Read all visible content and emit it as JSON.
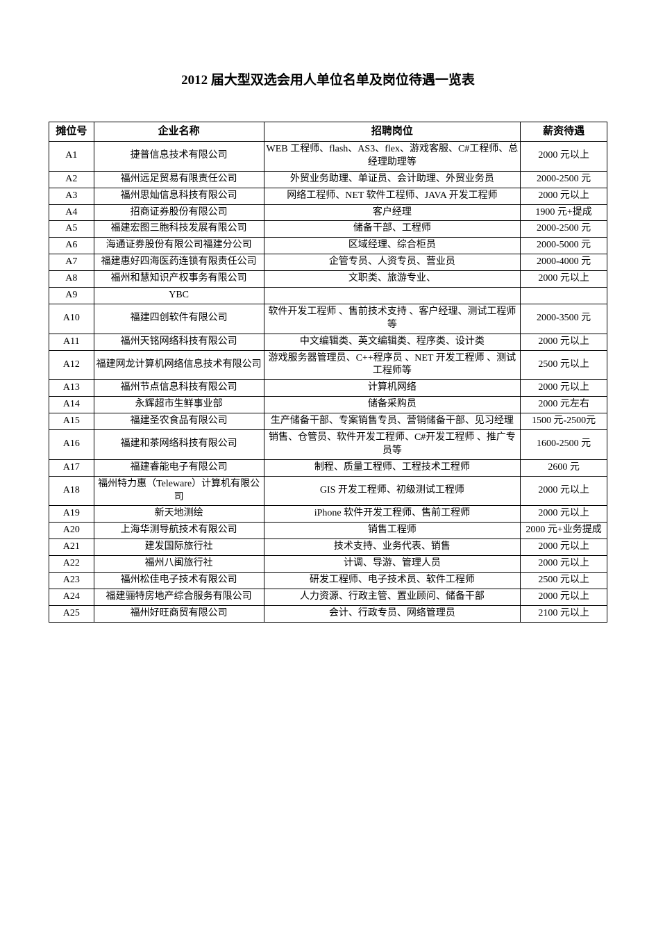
{
  "title": "2012 届大型双选会用人单位名单及岗位待遇一览表",
  "table": {
    "columns": [
      "摊位号",
      "企业名称",
      "招聘岗位",
      "薪资待遇"
    ],
    "column_widths_pct": [
      8,
      27,
      50,
      15
    ],
    "header_fontsize": 15,
    "cell_fontsize": 14,
    "border_color": "#000000",
    "text_color": "#000000",
    "background_color": "#ffffff",
    "rows": [
      {
        "booth": "A1",
        "company": "捷普信息技术有限公司",
        "position": "WEB 工程师、flash、AS3、flex、游戏客服、C#工程师、总经理助理等",
        "salary": "2000 元以上"
      },
      {
        "booth": "A2",
        "company": "福州远足贸易有限责任公司",
        "position": "外贸业务助理、单证员、会计助理、外贸业务员",
        "salary": "2000-2500 元"
      },
      {
        "booth": "A3",
        "company": "福州思灿信息科技有限公司",
        "position": "网络工程师、NET 软件工程师、JAVA 开发工程师",
        "salary": "2000 元以上"
      },
      {
        "booth": "A4",
        "company": "招商证券股份有限公司",
        "position": "客户经理",
        "salary": "1900 元+提成"
      },
      {
        "booth": "A5",
        "company": "福建宏图三胞科技发展有限公司",
        "position": "储备干部、工程师",
        "salary": "2000-2500 元"
      },
      {
        "booth": "A6",
        "company": "海通证券股份有限公司福建分公司",
        "position": "区域经理、综合柜员",
        "salary": "2000-5000 元"
      },
      {
        "booth": "A7",
        "company": "福建惠好四海医药连锁有限责任公司",
        "position": "企管专员、人资专员、营业员",
        "salary": "2000-4000 元"
      },
      {
        "booth": "A8",
        "company": "福州和慧知识产权事务有限公司",
        "position": "文职类、旅游专业、",
        "salary": "2000 元以上"
      },
      {
        "booth": "A9",
        "company": "YBC",
        "position": "",
        "salary": ""
      },
      {
        "booth": "A10",
        "company": "福建四创软件有限公司",
        "position": "软件开发工程师 、售前技术支持 、客户经理、测试工程师等",
        "salary": "2000-3500 元"
      },
      {
        "booth": "A11",
        "company": "福州天铭网络科技有限公司",
        "position": "中文编辑类、英文编辑类、程序类、设计类",
        "salary": "2000 元以上"
      },
      {
        "booth": "A12",
        "company": "福建网龙计算机网络信息技术有限公司",
        "position": "游戏服务器管理员、C++程序员 、NET 开发工程师 、测试工程师等",
        "salary": "2500 元以上"
      },
      {
        "booth": "A13",
        "company": "福州节点信息科技有限公司",
        "position": "计算机网络",
        "salary": "2000 元以上"
      },
      {
        "booth": "A14",
        "company": "永辉超市生鲜事业部",
        "position": "储备采购员",
        "salary": "2000 元左右"
      },
      {
        "booth": "A15",
        "company": "福建圣农食品有限公司",
        "position": "生产储备干部、专案销售专员、营销储备干部、见习经理",
        "salary": "1500 元-2500元"
      },
      {
        "booth": "A16",
        "company": "福建和茶网络科技有限公司",
        "position": "销售、仓管员、软件开发工程师、C#开发工程师 、推广专员等",
        "salary": "1600-2500 元"
      },
      {
        "booth": "A17",
        "company": "福建睿能电子有限公司",
        "position": "制程、质量工程师、工程技术工程师",
        "salary": "2600 元"
      },
      {
        "booth": "A18",
        "company": "福州特力惠（Teleware）计算机有限公司",
        "position": "GIS 开发工程师、初级测试工程师",
        "salary": "2000 元以上"
      },
      {
        "booth": "A19",
        "company": "新天地测绘",
        "position": "iPhone 软件开发工程师、售前工程师",
        "salary": "2000 元以上"
      },
      {
        "booth": "A20",
        "company": "上海华测导航技术有限公司",
        "position": "销售工程师",
        "salary": "2000 元+业务提成"
      },
      {
        "booth": "A21",
        "company": "建发国际旅行社",
        "position": "技术支持、业务代表、销售",
        "salary": "2000 元以上"
      },
      {
        "booth": "A22",
        "company": "福州八闽旅行社",
        "position": "计调、导游、管理人员",
        "salary": "2000 元以上"
      },
      {
        "booth": "A23",
        "company": "福州松佳电子技术有限公司",
        "position": "研发工程师、电子技术员、软件工程师",
        "salary": "2500 元以上"
      },
      {
        "booth": "A24",
        "company": "福建骊特房地产综合服务有限公司",
        "position": "人力资源、行政主管、置业顾问、储备干部",
        "salary": "2000 元以上"
      },
      {
        "booth": "A25",
        "company": "福州好旺商贸有限公司",
        "position": "会计、行政专员、网络管理员",
        "salary": "2100 元以上"
      }
    ]
  }
}
